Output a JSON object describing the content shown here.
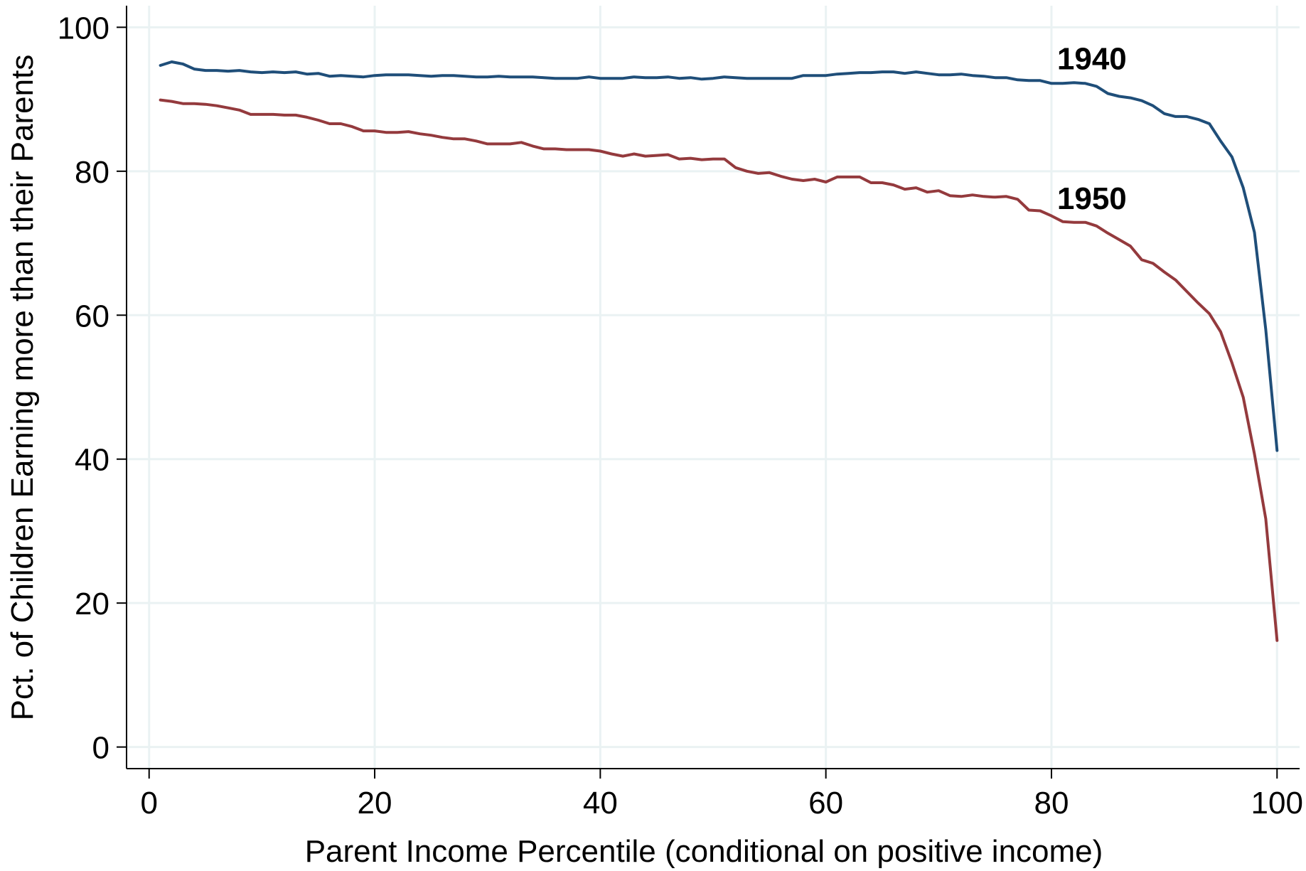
{
  "chart_data": {
    "type": "line",
    "title": "",
    "xlabel": "Parent Income Percentile (conditional on positive income)",
    "ylabel": "Pct. of Children Earning more than their Parents",
    "xlim": [
      -2,
      102
    ],
    "ylim": [
      -3,
      103
    ],
    "xticks": [
      0,
      20,
      40,
      60,
      80,
      100
    ],
    "yticks": [
      0,
      20,
      40,
      60,
      80,
      100
    ],
    "grid": true,
    "series": [
      {
        "name": "1940",
        "color": "#1f4e79",
        "points": [
          [
            1,
            94.7
          ],
          [
            2,
            95.2
          ],
          [
            3,
            94.9
          ],
          [
            4,
            94.2
          ],
          [
            5,
            94.0
          ],
          [
            6,
            94.0
          ],
          [
            7,
            93.9
          ],
          [
            8,
            94.0
          ],
          [
            9,
            93.8
          ],
          [
            10,
            93.7
          ],
          [
            11,
            93.8
          ],
          [
            12,
            93.7
          ],
          [
            13,
            93.8
          ],
          [
            14,
            93.5
          ],
          [
            15,
            93.6
          ],
          [
            16,
            93.2
          ],
          [
            17,
            93.3
          ],
          [
            18,
            93.2
          ],
          [
            19,
            93.1
          ],
          [
            20,
            93.3
          ],
          [
            21,
            93.4
          ],
          [
            22,
            93.4
          ],
          [
            23,
            93.4
          ],
          [
            24,
            93.3
          ],
          [
            25,
            93.2
          ],
          [
            26,
            93.3
          ],
          [
            27,
            93.3
          ],
          [
            28,
            93.2
          ],
          [
            29,
            93.1
          ],
          [
            30,
            93.1
          ],
          [
            31,
            93.2
          ],
          [
            32,
            93.1
          ],
          [
            33,
            93.1
          ],
          [
            34,
            93.1
          ],
          [
            35,
            93.0
          ],
          [
            36,
            92.9
          ],
          [
            37,
            92.9
          ],
          [
            38,
            92.9
          ],
          [
            39,
            93.1
          ],
          [
            40,
            92.9
          ],
          [
            41,
            92.9
          ],
          [
            42,
            92.9
          ],
          [
            43,
            93.1
          ],
          [
            44,
            93.0
          ],
          [
            45,
            93.0
          ],
          [
            46,
            93.1
          ],
          [
            47,
            92.9
          ],
          [
            48,
            93.0
          ],
          [
            49,
            92.8
          ],
          [
            50,
            92.9
          ],
          [
            51,
            93.1
          ],
          [
            52,
            93.0
          ],
          [
            53,
            92.9
          ],
          [
            54,
            92.9
          ],
          [
            55,
            92.9
          ],
          [
            56,
            92.9
          ],
          [
            57,
            92.9
          ],
          [
            58,
            93.3
          ],
          [
            59,
            93.3
          ],
          [
            60,
            93.3
          ],
          [
            61,
            93.5
          ],
          [
            62,
            93.6
          ],
          [
            63,
            93.7
          ],
          [
            64,
            93.7
          ],
          [
            65,
            93.8
          ],
          [
            66,
            93.8
          ],
          [
            67,
            93.6
          ],
          [
            68,
            93.8
          ],
          [
            69,
            93.6
          ],
          [
            70,
            93.4
          ],
          [
            71,
            93.4
          ],
          [
            72,
            93.5
          ],
          [
            73,
            93.3
          ],
          [
            74,
            93.2
          ],
          [
            75,
            93.0
          ],
          [
            76,
            93.0
          ],
          [
            77,
            92.7
          ],
          [
            78,
            92.6
          ],
          [
            79,
            92.6
          ],
          [
            80,
            92.2
          ],
          [
            81,
            92.2
          ],
          [
            82,
            92.3
          ],
          [
            83,
            92.2
          ],
          [
            84,
            91.8
          ],
          [
            85,
            90.8
          ],
          [
            86,
            90.4
          ],
          [
            87,
            90.2
          ],
          [
            88,
            89.8
          ],
          [
            89,
            89.1
          ],
          [
            90,
            88.0
          ],
          [
            91,
            87.6
          ],
          [
            92,
            87.6
          ],
          [
            93,
            87.2
          ],
          [
            94,
            86.6
          ],
          [
            95,
            84.2
          ],
          [
            96,
            82.0
          ],
          [
            97,
            77.7
          ],
          [
            98,
            71.5
          ],
          [
            99,
            58.0
          ],
          [
            100,
            41.2
          ]
        ]
      },
      {
        "name": "1950",
        "color": "#943a3d",
        "points": [
          [
            1,
            89.9
          ],
          [
            2,
            89.7
          ],
          [
            3,
            89.4
          ],
          [
            4,
            89.4
          ],
          [
            5,
            89.3
          ],
          [
            6,
            89.1
          ],
          [
            7,
            88.8
          ],
          [
            8,
            88.5
          ],
          [
            9,
            87.9
          ],
          [
            10,
            87.9
          ],
          [
            11,
            87.9
          ],
          [
            12,
            87.8
          ],
          [
            13,
            87.8
          ],
          [
            14,
            87.5
          ],
          [
            15,
            87.1
          ],
          [
            16,
            86.6
          ],
          [
            17,
            86.6
          ],
          [
            18,
            86.2
          ],
          [
            19,
            85.6
          ],
          [
            20,
            85.6
          ],
          [
            21,
            85.4
          ],
          [
            22,
            85.4
          ],
          [
            23,
            85.5
          ],
          [
            24,
            85.2
          ],
          [
            25,
            85.0
          ],
          [
            26,
            84.7
          ],
          [
            27,
            84.5
          ],
          [
            28,
            84.5
          ],
          [
            29,
            84.2
          ],
          [
            30,
            83.8
          ],
          [
            31,
            83.8
          ],
          [
            32,
            83.8
          ],
          [
            33,
            84.0
          ],
          [
            34,
            83.5
          ],
          [
            35,
            83.1
          ],
          [
            36,
            83.1
          ],
          [
            37,
            83.0
          ],
          [
            38,
            83.0
          ],
          [
            39,
            83.0
          ],
          [
            40,
            82.8
          ],
          [
            41,
            82.4
          ],
          [
            42,
            82.1
          ],
          [
            43,
            82.4
          ],
          [
            44,
            82.1
          ],
          [
            45,
            82.2
          ],
          [
            46,
            82.3
          ],
          [
            47,
            81.7
          ],
          [
            48,
            81.8
          ],
          [
            49,
            81.6
          ],
          [
            50,
            81.7
          ],
          [
            51,
            81.7
          ],
          [
            52,
            80.5
          ],
          [
            53,
            80.0
          ],
          [
            54,
            79.7
          ],
          [
            55,
            79.8
          ],
          [
            56,
            79.3
          ],
          [
            57,
            78.9
          ],
          [
            58,
            78.7
          ],
          [
            59,
            78.9
          ],
          [
            60,
            78.5
          ],
          [
            61,
            79.2
          ],
          [
            62,
            79.2
          ],
          [
            63,
            79.2
          ],
          [
            64,
            78.4
          ],
          [
            65,
            78.4
          ],
          [
            66,
            78.1
          ],
          [
            67,
            77.5
          ],
          [
            68,
            77.7
          ],
          [
            69,
            77.1
          ],
          [
            70,
            77.3
          ],
          [
            71,
            76.6
          ],
          [
            72,
            76.5
          ],
          [
            73,
            76.7
          ],
          [
            74,
            76.5
          ],
          [
            75,
            76.4
          ],
          [
            76,
            76.5
          ],
          [
            77,
            76.1
          ],
          [
            78,
            74.6
          ],
          [
            79,
            74.5
          ],
          [
            80,
            73.8
          ],
          [
            81,
            73.0
          ],
          [
            82,
            72.9
          ],
          [
            83,
            72.9
          ],
          [
            84,
            72.4
          ],
          [
            85,
            71.4
          ],
          [
            86,
            70.5
          ],
          [
            87,
            69.6
          ],
          [
            88,
            67.7
          ],
          [
            89,
            67.2
          ],
          [
            90,
            66.0
          ],
          [
            91,
            64.9
          ],
          [
            92,
            63.3
          ],
          [
            93,
            61.7
          ],
          [
            94,
            60.2
          ],
          [
            95,
            57.7
          ],
          [
            96,
            53.4
          ],
          [
            97,
            48.6
          ],
          [
            98,
            40.7
          ],
          [
            99,
            31.7
          ],
          [
            100,
            14.8
          ]
        ]
      }
    ]
  }
}
